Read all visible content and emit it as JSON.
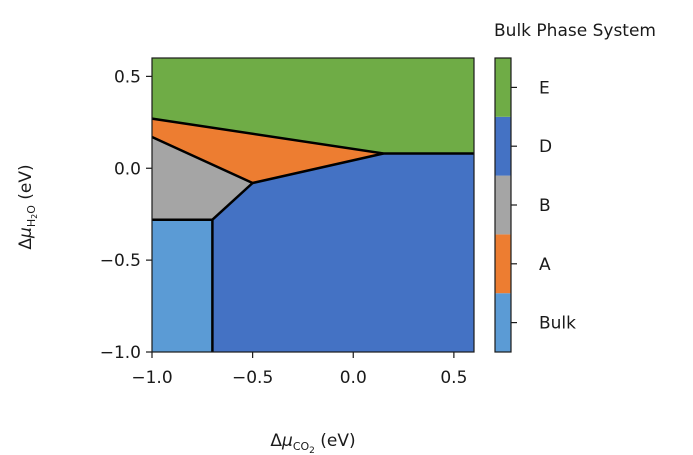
{
  "chart_data": {
    "type": "phase-diagram",
    "xlabel": {
      "prefix": "Δ",
      "mu": "μ",
      "sub": "CO",
      "sub2": "2",
      "suffix": " (eV)"
    },
    "ylabel": {
      "prefix": "Δ",
      "mu": "μ",
      "sub": "H",
      "sub2": "2",
      "sub3": "O",
      "suffix": " (eV)"
    },
    "xlim": [
      -1.0,
      0.6
    ],
    "ylim": [
      -1.0,
      0.6
    ],
    "xticks": [
      -1.0,
      -0.5,
      0.0,
      0.5
    ],
    "yticks": [
      -1.0,
      -0.5,
      0.0,
      0.5
    ],
    "xtick_labels": [
      "−1.0",
      "−0.5",
      "0.0",
      "0.5"
    ],
    "ytick_labels": [
      "−1.0",
      "−0.5",
      "0.0",
      "0.5"
    ],
    "colorbar_title": "Bulk Phase System",
    "colorbar_labels": [
      "Bulk",
      "A",
      "B",
      "D",
      "E"
    ],
    "regions": [
      {
        "label": "E",
        "color": "#6fac46",
        "polygon": [
          [
            -1.0,
            0.6
          ],
          [
            0.6,
            0.6
          ],
          [
            0.6,
            0.08
          ],
          [
            0.15,
            0.08
          ],
          [
            -1.0,
            0.27
          ]
        ]
      },
      {
        "label": "A",
        "color": "#ed7d31",
        "polygon": [
          [
            -1.0,
            0.27
          ],
          [
            0.15,
            0.08
          ],
          [
            -0.5,
            -0.08
          ],
          [
            -1.0,
            0.17
          ]
        ]
      },
      {
        "label": "B",
        "color": "#a5a5a5",
        "polygon": [
          [
            -1.0,
            0.17
          ],
          [
            -0.5,
            -0.08
          ],
          [
            -0.7,
            -0.28
          ],
          [
            -1.0,
            -0.28
          ]
        ]
      },
      {
        "label": "D",
        "color": "#4472c4",
        "polygon": [
          [
            -0.5,
            -0.08
          ],
          [
            0.15,
            0.08
          ],
          [
            0.6,
            0.08
          ],
          [
            0.6,
            -1.0
          ],
          [
            -0.7,
            -1.0
          ],
          [
            -0.7,
            -0.28
          ]
        ]
      },
      {
        "label": "Bulk",
        "color": "#5b9bd5",
        "polygon": [
          [
            -1.0,
            -0.28
          ],
          [
            -0.7,
            -0.28
          ],
          [
            -0.7,
            -1.0
          ],
          [
            -1.0,
            -1.0
          ]
        ]
      }
    ],
    "boundaries": [
      [
        [
          -1.0,
          0.27
        ],
        [
          0.15,
          0.08
        ],
        [
          0.6,
          0.08
        ]
      ],
      [
        [
          -1.0,
          0.17
        ],
        [
          -0.5,
          -0.08
        ],
        [
          0.15,
          0.08
        ]
      ],
      [
        [
          -0.5,
          -0.08
        ],
        [
          -0.7,
          -0.28
        ],
        [
          -1.0,
          -0.28
        ]
      ],
      [
        [
          -0.7,
          -0.28
        ],
        [
          -0.7,
          -1.0
        ]
      ]
    ]
  }
}
